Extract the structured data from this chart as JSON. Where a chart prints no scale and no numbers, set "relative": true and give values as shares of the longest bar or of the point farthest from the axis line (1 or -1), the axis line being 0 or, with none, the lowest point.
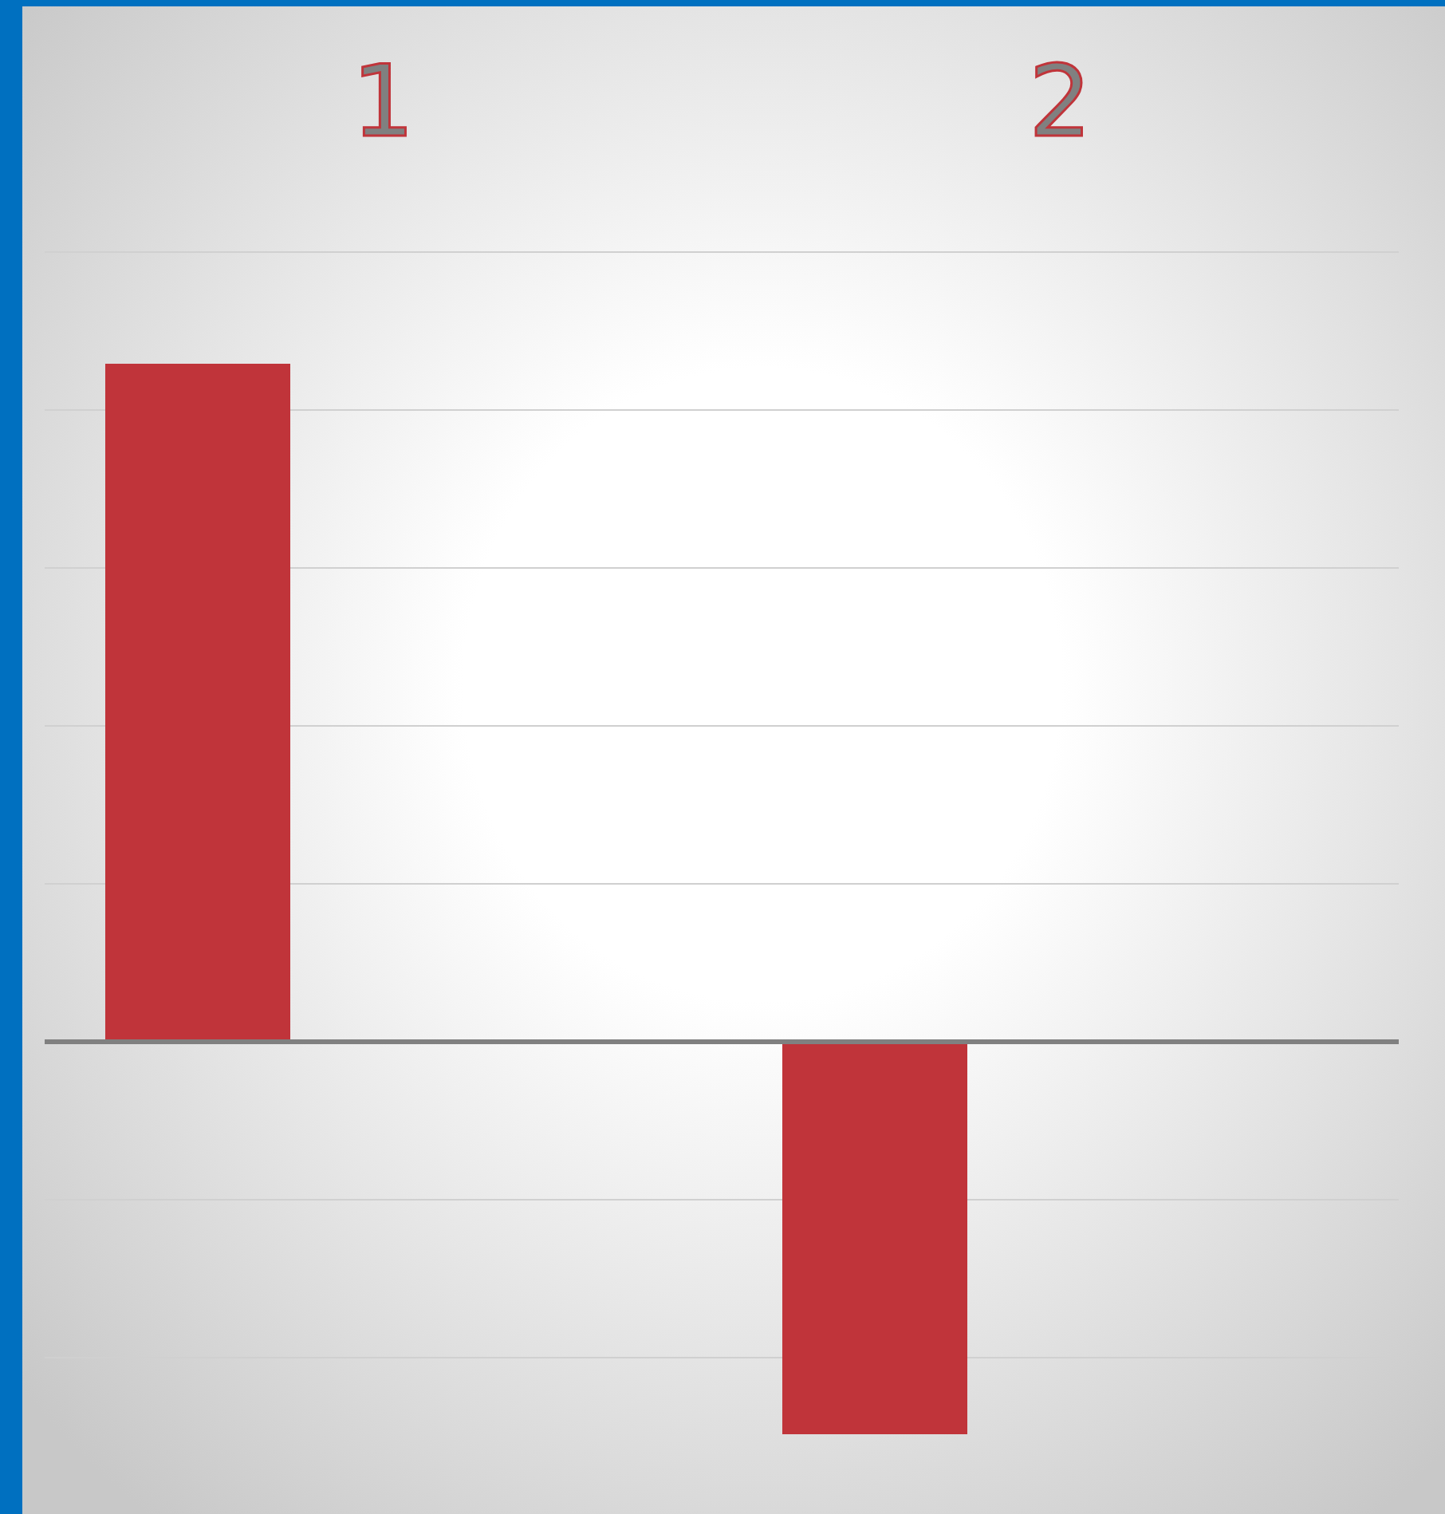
{
  "chart_data": {
    "type": "bar",
    "relative": true,
    "categories": [
      "1",
      "2"
    ],
    "values": [
      1,
      -0.579
    ],
    "color": "#c0343a",
    "grid": "y"
  }
}
